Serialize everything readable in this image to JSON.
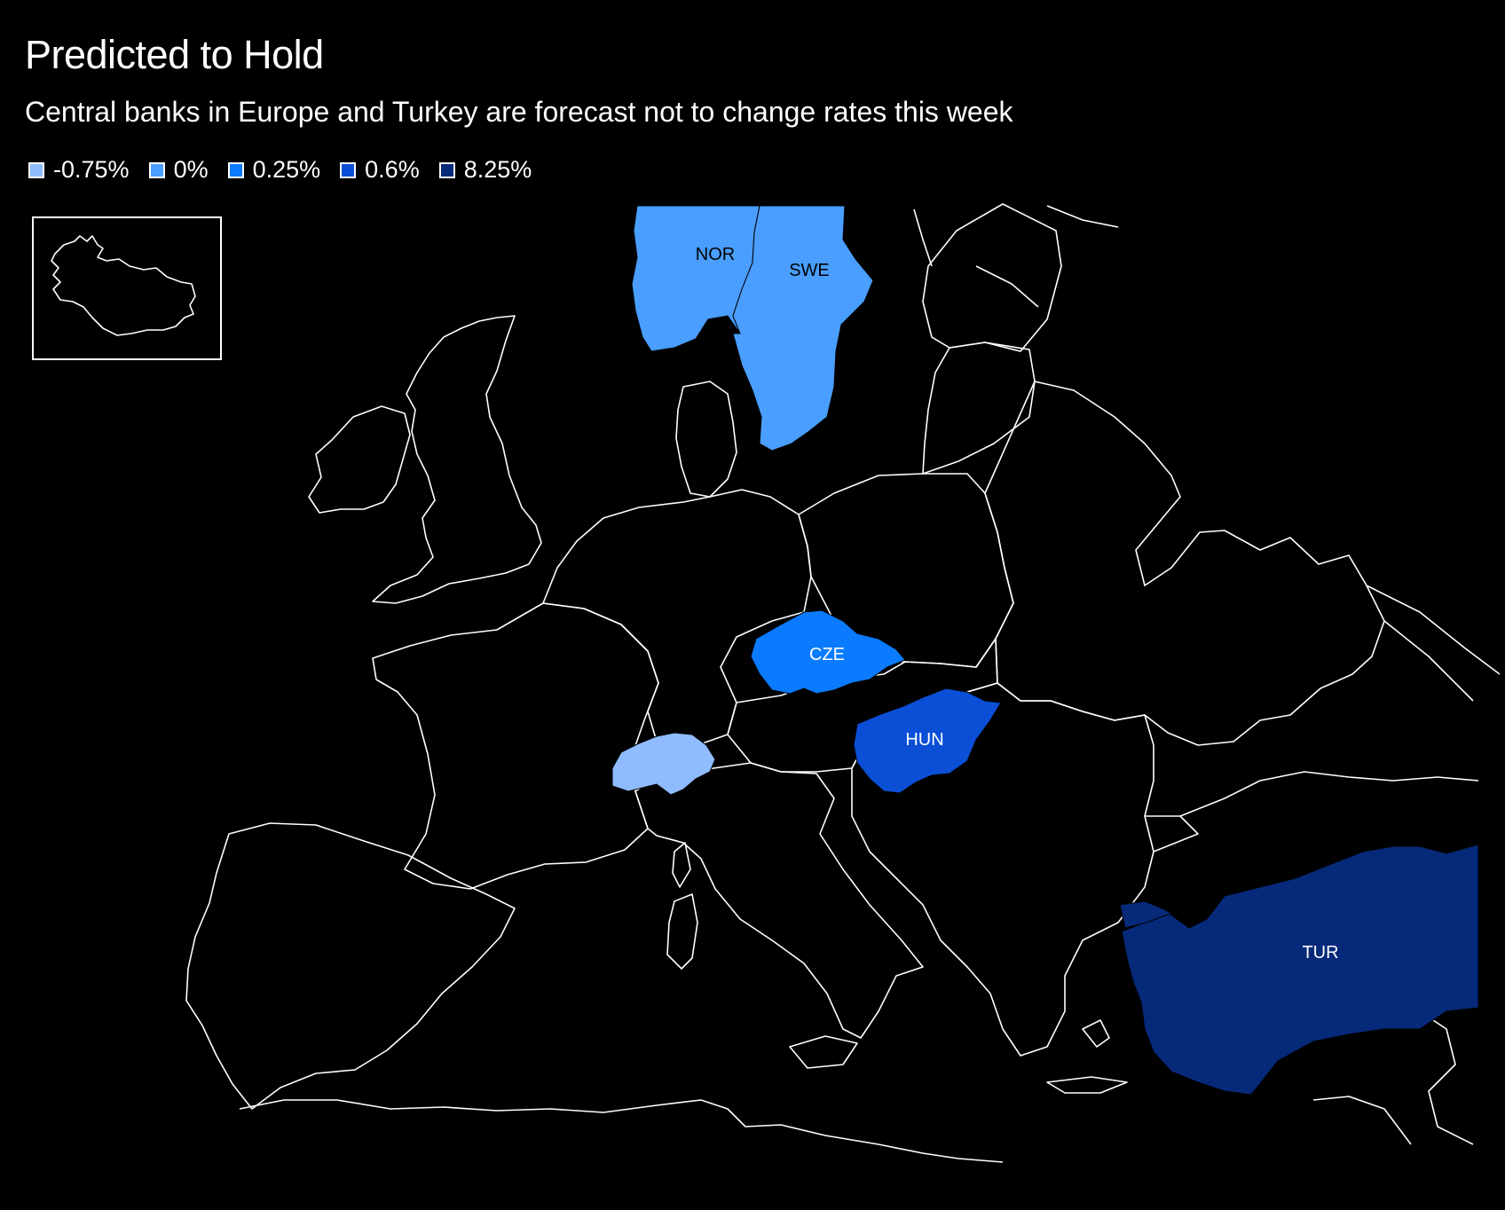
{
  "title": "Predicted to Hold",
  "subtitle": "Central banks in Europe and Turkey are forecast not to change rates this week",
  "legend": [
    {
      "label": "-0.75%",
      "color": "#8ebcff"
    },
    {
      "label": "0%",
      "color": "#4a9eff"
    },
    {
      "label": "0.25%",
      "color": "#0a7bff"
    },
    {
      "label": "0.6%",
      "color": "#0a4fd6"
    },
    {
      "label": "8.25%",
      "color": "#06297a"
    }
  ],
  "countries": {
    "nor": {
      "label": "NOR",
      "rate": "0%",
      "color": "#4a9eff",
      "label_color": "#000000"
    },
    "swe": {
      "label": "SWE",
      "rate": "0%",
      "color": "#4a9eff",
      "label_color": "#000000"
    },
    "cze": {
      "label": "CZE",
      "rate": "0.25%",
      "color": "#0a7bff",
      "label_color": "#ffffff"
    },
    "hun": {
      "label": "HUN",
      "rate": "0.6%",
      "color": "#0a4fd6",
      "label_color": "#ffffff"
    },
    "che": {
      "label": "",
      "rate": "-0.75%",
      "color": "#8ebcff",
      "label_color": "#000000"
    },
    "tur": {
      "label": "TUR",
      "rate": "8.25%",
      "color": "#06297a",
      "label_color": "#ffffff"
    }
  }
}
